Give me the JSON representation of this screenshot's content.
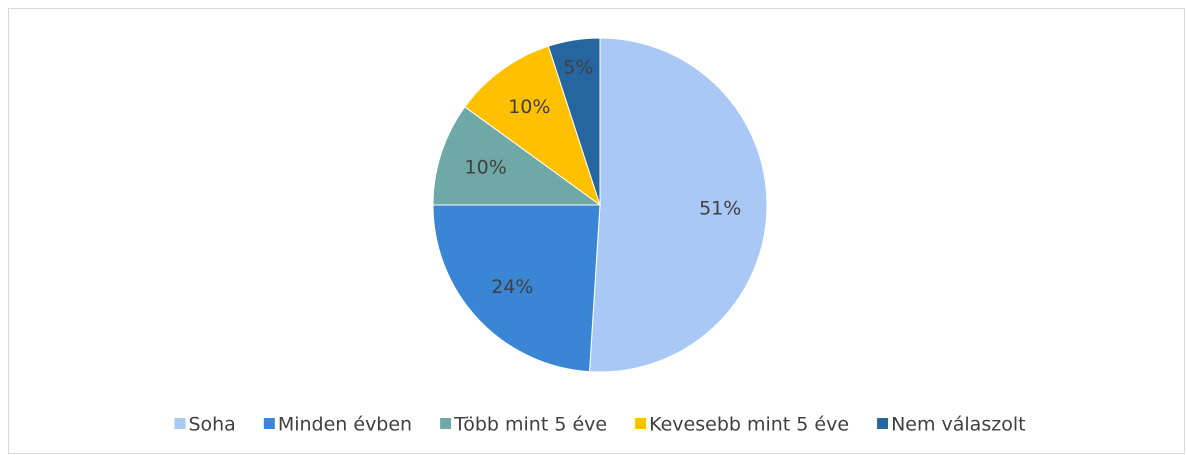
{
  "chart_data": {
    "type": "pie",
    "categories": [
      "Soha",
      "Minden évben",
      "Több mint 5 éve",
      "Kevesebb mint 5 éve",
      "Nem válaszolt"
    ],
    "values": [
      51,
      24,
      10,
      10,
      5
    ],
    "value_labels": [
      "51%",
      "24%",
      "10%",
      "10%",
      "5%"
    ],
    "colors": [
      "#a9c8f6",
      "#3a86d4",
      "#6fa9a7",
      "#ffc000",
      "#2566a0"
    ],
    "legend": "bottom"
  }
}
